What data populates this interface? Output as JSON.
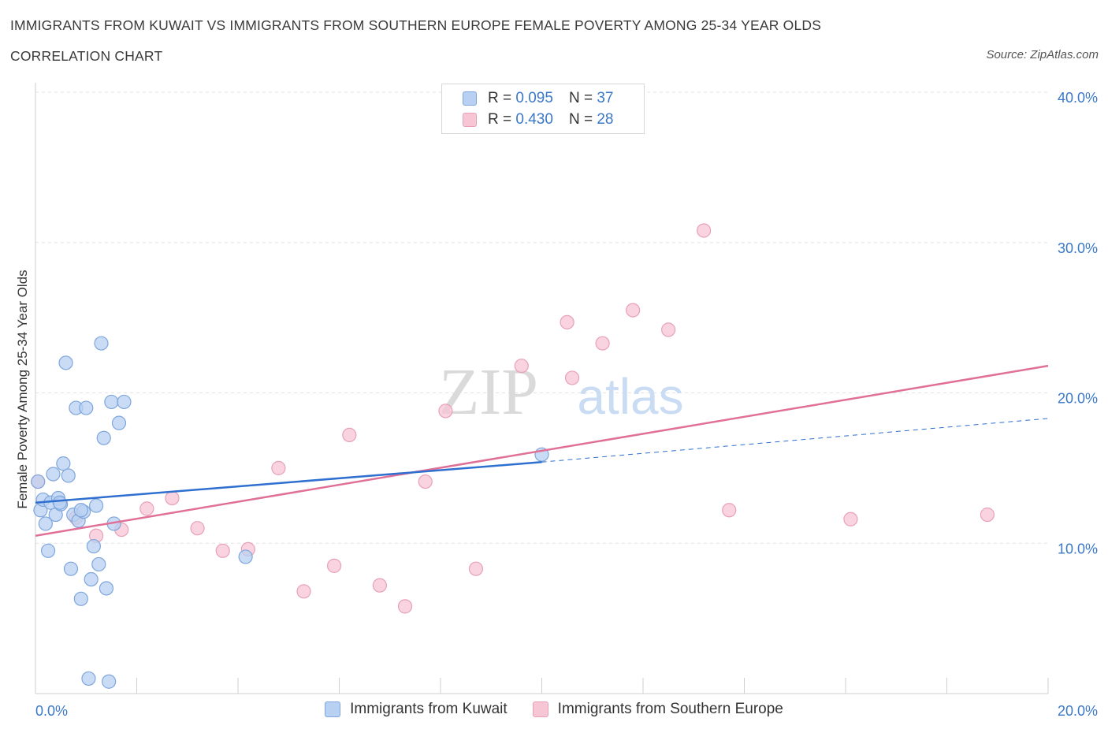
{
  "header": {
    "title": "IMMIGRANTS FROM KUWAIT VS IMMIGRANTS FROM SOUTHERN EUROPE FEMALE POVERTY AMONG 25-34 YEAR OLDS",
    "subtitle": "CORRELATION CHART",
    "source": "Source: ZipAtlas.com"
  },
  "watermark": {
    "zip": "ZIP",
    "atlas": "atlas"
  },
  "stats": [
    {
      "r_label": "R = ",
      "r_value": "0.095",
      "n_label": "N = ",
      "n_value": "37"
    },
    {
      "r_label": "R = ",
      "r_value": "0.430",
      "n_label": "N = ",
      "n_value": "28"
    }
  ],
  "colors": {
    "blue_fill": "#b8d0f2",
    "blue_stroke": "#7ea6dc",
    "blue_line": "#2e6fcf",
    "pink_fill": "#f7c6d5",
    "pink_stroke": "#e8a0b8",
    "pink_line": "#e07098",
    "axis_text": "#3a78c8",
    "grid": "#e2e2e2"
  },
  "chart_data": {
    "type": "scatter",
    "title": "IMMIGRANTS FROM KUWAIT VS IMMIGRANTS FROM SOUTHERN EUROPE FEMALE POVERTY AMONG 25-34 YEAR OLDS",
    "xlabel": "",
    "ylabel": "Female Poverty Among 25-34 Year Olds",
    "xlim": [
      0,
      20
    ],
    "ylim": [
      0,
      40
    ],
    "x_tick_labels": [
      "0.0%",
      "20.0%"
    ],
    "y_ticks": [
      10,
      20,
      30,
      40
    ],
    "y_tick_labels": [
      "10.0%",
      "20.0%",
      "30.0%",
      "40.0%"
    ],
    "legend_position": "top-center",
    "series": [
      {
        "name": "Immigrants from Kuwait",
        "color": "blue",
        "r": 0.095,
        "n": 37,
        "trend": {
          "x0": 0.0,
          "y0": 12.7,
          "x1": 10.0,
          "y1": 15.4,
          "dash_to_x": 20.0,
          "dash_to_y": 18.3
        },
        "points": [
          [
            0.05,
            14.1
          ],
          [
            0.1,
            12.2
          ],
          [
            0.15,
            12.9
          ],
          [
            0.2,
            11.3
          ],
          [
            0.3,
            12.7
          ],
          [
            0.35,
            14.6
          ],
          [
            0.4,
            11.9
          ],
          [
            0.45,
            13.0
          ],
          [
            0.5,
            12.6
          ],
          [
            0.55,
            15.3
          ],
          [
            0.6,
            22.0
          ],
          [
            0.65,
            14.5
          ],
          [
            0.7,
            8.3
          ],
          [
            0.75,
            11.9
          ],
          [
            0.8,
            19.0
          ],
          [
            0.85,
            11.5
          ],
          [
            0.9,
            6.3
          ],
          [
            0.95,
            12.1
          ],
          [
            1.0,
            19.0
          ],
          [
            1.05,
            1.0
          ],
          [
            1.1,
            7.6
          ],
          [
            1.15,
            9.8
          ],
          [
            1.2,
            12.5
          ],
          [
            1.25,
            8.6
          ],
          [
            1.3,
            23.3
          ],
          [
            1.35,
            17.0
          ],
          [
            1.4,
            7.0
          ],
          [
            1.45,
            0.8
          ],
          [
            1.5,
            19.4
          ],
          [
            1.55,
            11.3
          ],
          [
            1.65,
            18.0
          ],
          [
            1.75,
            19.4
          ],
          [
            4.15,
            9.1
          ],
          [
            10.0,
            15.9
          ],
          [
            0.25,
            9.5
          ],
          [
            0.48,
            12.7
          ],
          [
            0.9,
            12.2
          ]
        ]
      },
      {
        "name": "Immigrants from Southern Europe",
        "color": "pink",
        "r": 0.43,
        "n": 28,
        "trend": {
          "x0": 0.0,
          "y0": 10.5,
          "x1": 20.0,
          "y1": 21.8
        },
        "points": [
          [
            0.05,
            14.1
          ],
          [
            0.8,
            11.7
          ],
          [
            1.2,
            10.5
          ],
          [
            1.7,
            10.9
          ],
          [
            2.2,
            12.3
          ],
          [
            2.7,
            13.0
          ],
          [
            3.2,
            11.0
          ],
          [
            3.7,
            9.5
          ],
          [
            4.2,
            9.6
          ],
          [
            4.8,
            15.0
          ],
          [
            5.3,
            6.8
          ],
          [
            5.9,
            8.5
          ],
          [
            6.2,
            17.2
          ],
          [
            6.8,
            7.2
          ],
          [
            7.3,
            5.8
          ],
          [
            7.7,
            14.1
          ],
          [
            8.1,
            18.8
          ],
          [
            8.7,
            8.3
          ],
          [
            9.6,
            21.8
          ],
          [
            10.5,
            24.7
          ],
          [
            10.6,
            21.0
          ],
          [
            11.2,
            23.3
          ],
          [
            11.8,
            25.5
          ],
          [
            12.5,
            24.2
          ],
          [
            13.2,
            30.8
          ],
          [
            13.7,
            12.2
          ],
          [
            16.1,
            11.6
          ],
          [
            18.8,
            11.9
          ]
        ]
      }
    ]
  },
  "legend": [
    {
      "label": "Immigrants from Kuwait"
    },
    {
      "label": "Immigrants from Southern Europe"
    }
  ]
}
